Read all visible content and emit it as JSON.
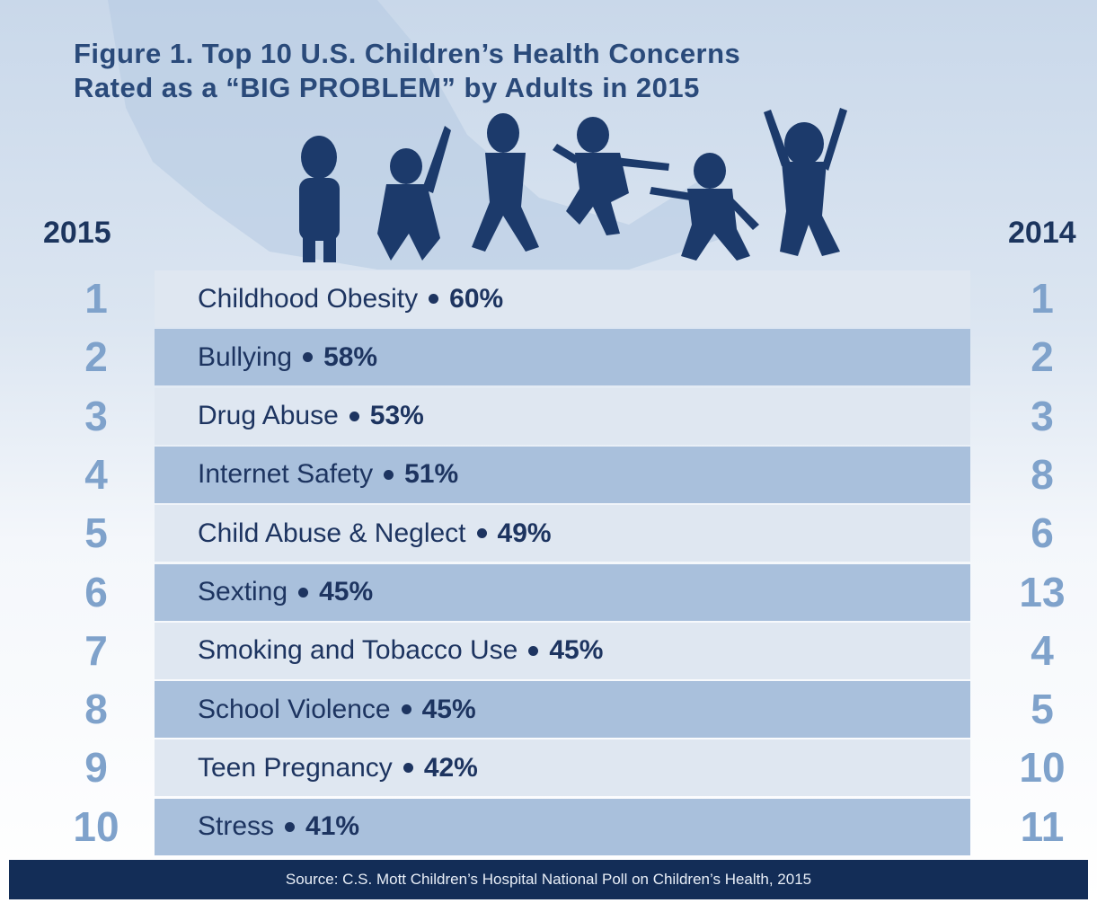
{
  "header": {
    "title_line_1": "Figure 1. Top 10 U.S. Children’s Health Concerns",
    "title_line_2": "Rated as a “BIG PROBLEM” by Adults in 2015",
    "year_left": "2015",
    "year_right": "2014"
  },
  "rows": [
    {
      "rank_2015": "1",
      "concern": "Childhood Obesity",
      "percent": "60%",
      "rank_2014": "1"
    },
    {
      "rank_2015": "2",
      "concern": "Bullying",
      "percent": "58%",
      "rank_2014": "2"
    },
    {
      "rank_2015": "3",
      "concern": "Drug Abuse",
      "percent": "53%",
      "rank_2014": "3"
    },
    {
      "rank_2015": "4",
      "concern": "Internet Safety",
      "percent": "51%",
      "rank_2014": "8"
    },
    {
      "rank_2015": "5",
      "concern": "Child Abuse & Neglect",
      "percent": "49%",
      "rank_2014": "6"
    },
    {
      "rank_2015": "6",
      "concern": "Sexting",
      "percent": "45%",
      "rank_2014": "13"
    },
    {
      "rank_2015": "7",
      "concern": "Smoking and Tobacco Use",
      "percent": "45%",
      "rank_2014": "4"
    },
    {
      "rank_2015": "8",
      "concern": "School Violence",
      "percent": "45%",
      "rank_2014": "5"
    },
    {
      "rank_2015": "9",
      "concern": "Teen Pregnancy",
      "percent": "42%",
      "rank_2014": "10"
    },
    {
      "rank_2015": "10",
      "concern": "Stress",
      "percent": "41%",
      "rank_2014": "11"
    }
  ],
  "footer": {
    "source": "Source: C.S. Mott Children’s Hospital National Poll on Children’s Health, 2015"
  }
}
